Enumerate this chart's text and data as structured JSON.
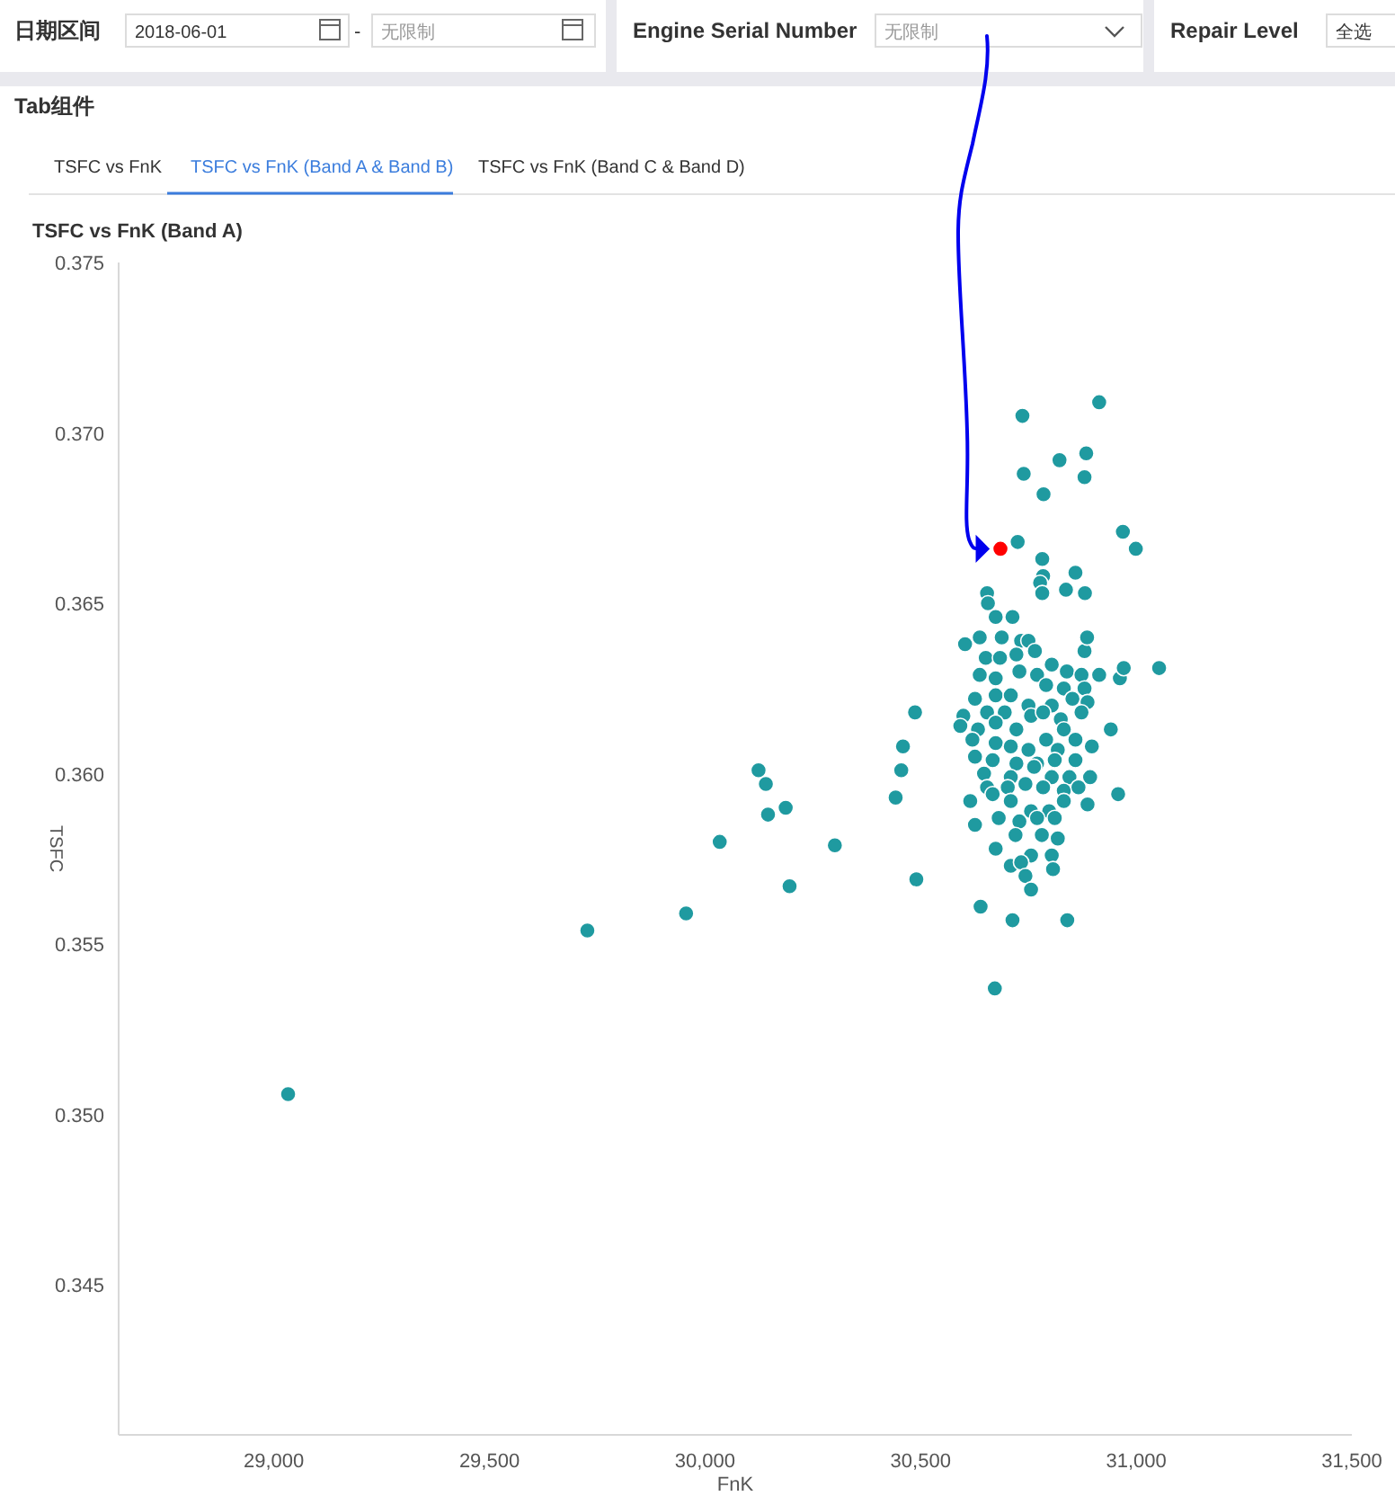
{
  "chart_data": {
    "type": "scatter",
    "title": "TSFC vs FnK (Band A)",
    "xlabel": "FnK",
    "ylabel": "TSFC",
    "annotations": [
      "日期区间",
      "2018-06-01",
      "-",
      "无限制",
      "Engine Serial Number",
      "无限制",
      "Repair Level",
      "全选",
      "Tab组件",
      "TSFC vs FnK",
      "TSFC vs FnK (Band A & Band B)",
      "TSFC vs FnK (Band C & Band D)"
    ],
    "xlim": [
      28640,
      31500
    ],
    "ylim": [
      0.3406,
      0.375
    ],
    "xticks": [
      {
        "value": 29000,
        "label": "29,000"
      },
      {
        "value": 29500,
        "label": "29,500"
      },
      {
        "value": 30000,
        "label": "30,000"
      },
      {
        "value": 30500,
        "label": "30,500"
      },
      {
        "value": 31000,
        "label": "31,000"
      },
      {
        "value": 31500,
        "label": "31,500"
      }
    ],
    "yticks": [
      {
        "value": 0.345,
        "label": "0.345"
      },
      {
        "value": 0.35,
        "label": "0.350"
      },
      {
        "value": 0.355,
        "label": "0.355"
      },
      {
        "value": 0.36,
        "label": "0.360"
      },
      {
        "value": 0.365,
        "label": "0.365"
      },
      {
        "value": 0.37,
        "label": "0.370"
      },
      {
        "value": 0.375,
        "label": "0.375"
      }
    ],
    "grid": false,
    "marker": "circle",
    "series": [
      {
        "color": "#1f9aa0",
        "x": [
          30674,
          30713,
          30603,
          30637,
          30688,
          30733,
          30750,
          30765,
          30880,
          30651,
          30684,
          30722,
          30804,
          30839,
          30873,
          30962,
          30637,
          30674,
          30729,
          30770,
          30791,
          30832,
          30880,
          30626,
          30674,
          30709,
          30750,
          30804,
          30852,
          30887,
          30487,
          30599,
          30654,
          30695,
          30756,
          30784,
          30825,
          30873,
          30592,
          30633,
          30674,
          30722,
          30791,
          30832,
          30859,
          30941,
          30620,
          30674,
          30709,
          30750,
          30818,
          30897,
          30459,
          30626,
          30667,
          30722,
          30770,
          30811,
          30859,
          30455,
          30647,
          30709,
          30763,
          30804,
          30845,
          30893,
          30654,
          30702,
          30743,
          30784,
          30832,
          30866,
          30442,
          30615,
          30667,
          30709,
          30756,
          30798,
          30832,
          30887,
          30958,
          30681,
          30729,
          30770,
          30811,
          30626,
          30720,
          30781,
          30818,
          30674,
          30756,
          30804,
          30709,
          30733,
          30807,
          30743,
          30756,
          30736,
          30914,
          30739,
          30822,
          30884,
          30880,
          30785,
          30725,
          30969,
          30999,
          30782,
          30859,
          30784,
          30777,
          30782,
          30837,
          30881,
          30654,
          30656,
          30886,
          29033,
          29727,
          29956,
          30034,
          30124,
          30141,
          30146,
          30187,
          30196,
          30301,
          30490,
          30639,
          30672,
          30713,
          30840,
          31053,
          30971,
          30914
        ],
        "values": [
          0.3646,
          0.3646,
          0.3638,
          0.364,
          0.364,
          0.3639,
          0.3639,
          0.3636,
          0.3636,
          0.3634,
          0.3634,
          0.3635,
          0.3632,
          0.363,
          0.3629,
          0.3628,
          0.3629,
          0.3628,
          0.363,
          0.3629,
          0.3626,
          0.3625,
          0.3625,
          0.3622,
          0.3623,
          0.3623,
          0.362,
          0.362,
          0.3622,
          0.3621,
          0.3618,
          0.3617,
          0.3618,
          0.3618,
          0.3617,
          0.3618,
          0.3616,
          0.3618,
          0.3614,
          0.3613,
          0.3615,
          0.3613,
          0.361,
          0.3613,
          0.361,
          0.3613,
          0.361,
          0.3609,
          0.3608,
          0.3607,
          0.3607,
          0.3608,
          0.3608,
          0.3605,
          0.3604,
          0.3603,
          0.3603,
          0.3604,
          0.3604,
          0.3601,
          0.36,
          0.3599,
          0.3602,
          0.3599,
          0.3599,
          0.3599,
          0.3596,
          0.3596,
          0.3597,
          0.3596,
          0.3595,
          0.3596,
          0.3593,
          0.3592,
          0.3594,
          0.3592,
          0.3589,
          0.3589,
          0.3592,
          0.3591,
          0.3594,
          0.3587,
          0.3586,
          0.3587,
          0.3587,
          0.3585,
          0.3582,
          0.3582,
          0.3581,
          0.3578,
          0.3576,
          0.3576,
          0.3573,
          0.3574,
          0.3572,
          0.357,
          0.3566,
          0.3705,
          0.3709,
          0.3688,
          0.3692,
          0.3694,
          0.3687,
          0.3682,
          0.3668,
          0.3671,
          0.3666,
          0.3663,
          0.3659,
          0.3658,
          0.3656,
          0.3653,
          0.3654,
          0.3653,
          0.3653,
          0.365,
          0.364,
          0.3506,
          0.3554,
          0.3559,
          0.358,
          0.3601,
          0.3597,
          0.3588,
          0.359,
          0.3567,
          0.3579,
          0.3569,
          0.3561,
          0.3537,
          0.3557,
          0.3557,
          0.3631,
          0.3631,
          0.3629
        ]
      },
      {
        "color": "#ff0000",
        "x": [
          30685
        ],
        "values": [
          0.3666
        ]
      }
    ]
  }
}
